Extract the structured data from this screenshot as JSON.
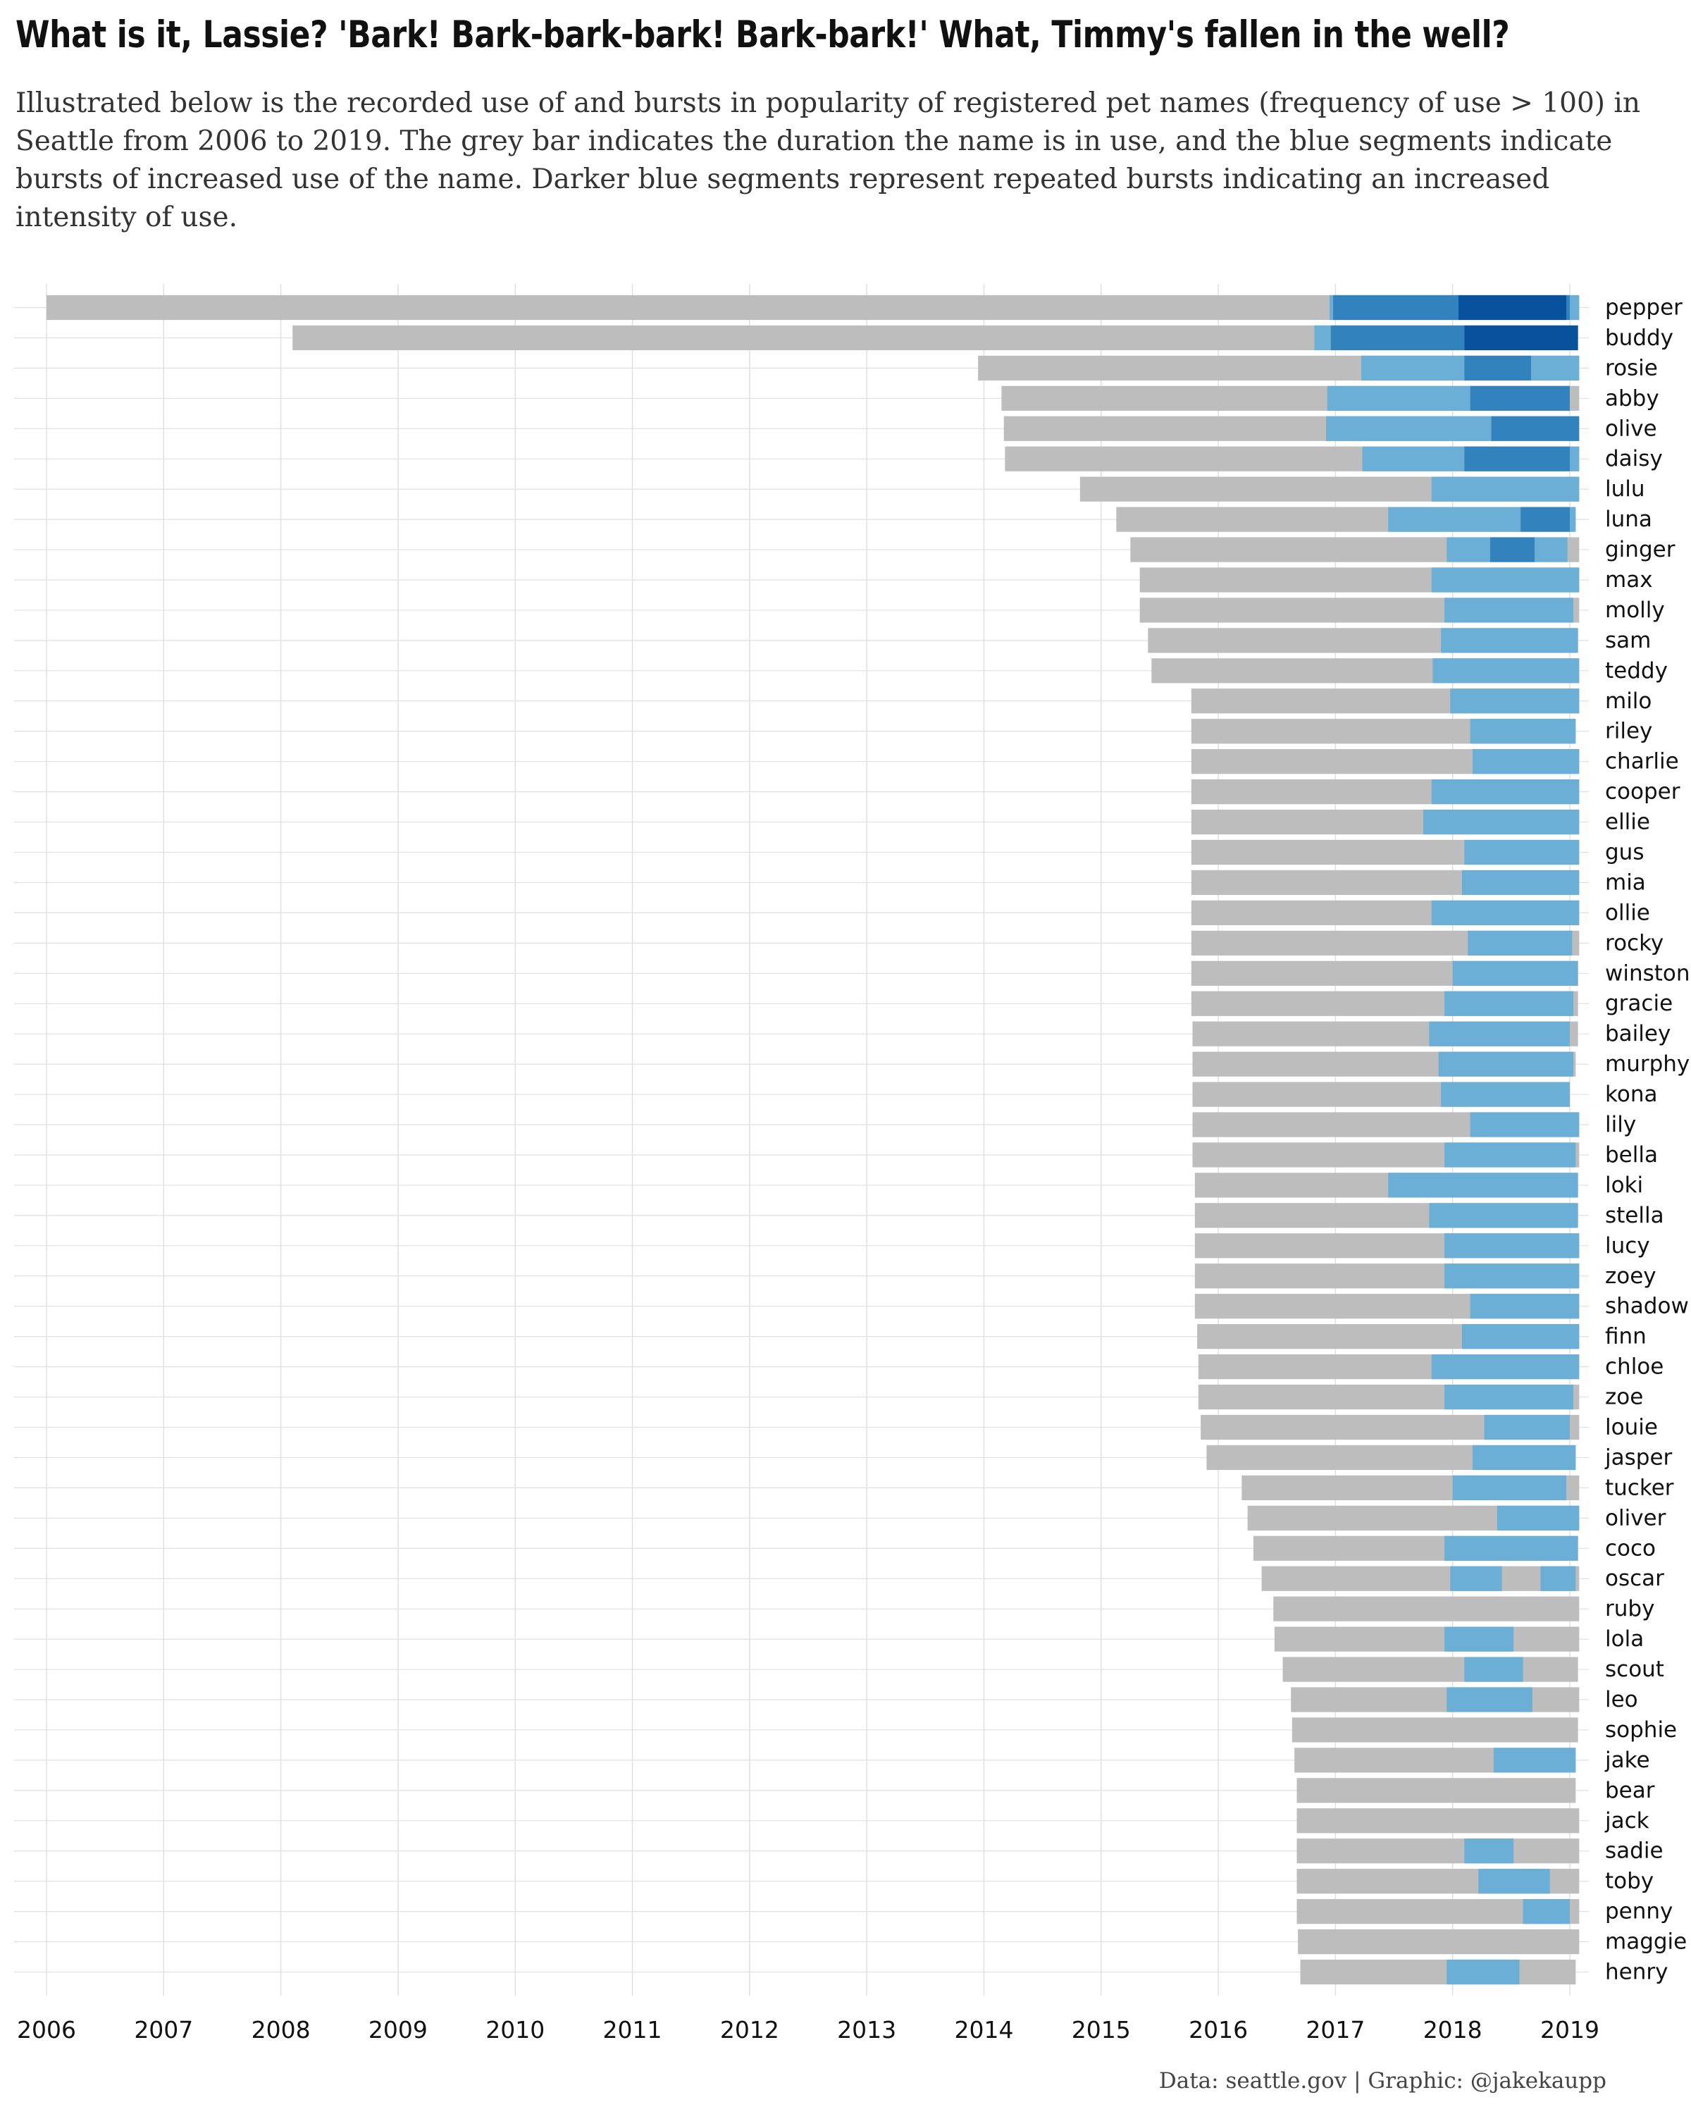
{
  "title": "What is it, Lassie? 'Bark! Bark-bark-bark! Bark-bark!' What, Timmy's fallen in the well?",
  "subtitle": "Illustrated below is the recorded use of and bursts in popularity of registered pet names (frequency of use > 100) in Seattle from 2006 to 2019. The grey bar indicates the duration the name is in use, and the blue segments indicate bursts of increased use of the name. Darker blue segments represent repeated bursts indicating an increased intensity of use.",
  "caption": "Data: seattle.gov | Graphic: @jakekaupp",
  "colors": {
    "usage": "#bdbdbd",
    "burst_level_1": "#6baed6",
    "burst_level_2": "#3182bd",
    "burst_level_3": "#08519c",
    "grid": "#e0e0e0"
  },
  "chart_data": {
    "type": "bar",
    "orientation": "horizontal-timeline",
    "x_axis": {
      "ticks": [
        "2006",
        "2007",
        "2008",
        "2009",
        "2010",
        "2011",
        "2012",
        "2013",
        "2014",
        "2015",
        "2016",
        "2017",
        "2018",
        "2019"
      ],
      "range": [
        2006,
        2019.1
      ]
    },
    "grid": true,
    "name_labels_position": "right",
    "rows": [
      {
        "name": "pepper",
        "start": 2006.0,
        "end": 2019.08,
        "bursts": [
          {
            "start": 2016.95,
            "end": 2016.98,
            "level": 1
          },
          {
            "start": 2016.98,
            "end": 2018.05,
            "level": 2
          },
          {
            "start": 2018.05,
            "end": 2018.97,
            "level": 3
          },
          {
            "start": 2018.97,
            "end": 2019.0,
            "level": 2
          },
          {
            "start": 2019.0,
            "end": 2019.08,
            "level": 1
          }
        ]
      },
      {
        "name": "buddy",
        "start": 2008.1,
        "end": 2019.07,
        "bursts": [
          {
            "start": 2016.82,
            "end": 2016.96,
            "level": 1
          },
          {
            "start": 2016.96,
            "end": 2018.1,
            "level": 2
          },
          {
            "start": 2018.1,
            "end": 2019.07,
            "level": 3
          }
        ]
      },
      {
        "name": "rosie",
        "start": 2013.95,
        "end": 2019.08,
        "bursts": [
          {
            "start": 2017.22,
            "end": 2018.1,
            "level": 1
          },
          {
            "start": 2018.1,
            "end": 2018.67,
            "level": 2
          },
          {
            "start": 2018.67,
            "end": 2019.08,
            "level": 1
          }
        ]
      },
      {
        "name": "abby",
        "start": 2014.15,
        "end": 2019.08,
        "bursts": [
          {
            "start": 2016.93,
            "end": 2018.15,
            "level": 1
          },
          {
            "start": 2018.15,
            "end": 2019.0,
            "level": 2
          }
        ]
      },
      {
        "name": "olive",
        "start": 2014.17,
        "end": 2019.08,
        "bursts": [
          {
            "start": 2016.92,
            "end": 2018.33,
            "level": 1
          },
          {
            "start": 2018.33,
            "end": 2019.08,
            "level": 2
          }
        ]
      },
      {
        "name": "daisy",
        "start": 2014.18,
        "end": 2019.08,
        "bursts": [
          {
            "start": 2017.23,
            "end": 2018.1,
            "level": 1
          },
          {
            "start": 2018.1,
            "end": 2019.0,
            "level": 2
          },
          {
            "start": 2019.0,
            "end": 2019.08,
            "level": 1
          }
        ]
      },
      {
        "name": "lulu",
        "start": 2014.82,
        "end": 2019.08,
        "bursts": [
          {
            "start": 2017.82,
            "end": 2019.08,
            "level": 1
          }
        ]
      },
      {
        "name": "luna",
        "start": 2015.13,
        "end": 2019.05,
        "bursts": [
          {
            "start": 2017.45,
            "end": 2018.58,
            "level": 1
          },
          {
            "start": 2018.58,
            "end": 2019.0,
            "level": 2
          },
          {
            "start": 2019.0,
            "end": 2019.05,
            "level": 1
          }
        ]
      },
      {
        "name": "ginger",
        "start": 2015.25,
        "end": 2019.08,
        "bursts": [
          {
            "start": 2017.95,
            "end": 2018.32,
            "level": 1
          },
          {
            "start": 2018.32,
            "end": 2018.7,
            "level": 2
          },
          {
            "start": 2018.7,
            "end": 2018.98,
            "level": 1
          }
        ]
      },
      {
        "name": "max",
        "start": 2015.33,
        "end": 2019.08,
        "bursts": [
          {
            "start": 2017.82,
            "end": 2019.08,
            "level": 1
          }
        ]
      },
      {
        "name": "molly",
        "start": 2015.33,
        "end": 2019.08,
        "bursts": [
          {
            "start": 2017.93,
            "end": 2019.03,
            "level": 1
          }
        ]
      },
      {
        "name": "sam",
        "start": 2015.4,
        "end": 2019.07,
        "bursts": [
          {
            "start": 2017.9,
            "end": 2019.07,
            "level": 1
          }
        ]
      },
      {
        "name": "teddy",
        "start": 2015.43,
        "end": 2019.08,
        "bursts": [
          {
            "start": 2017.83,
            "end": 2019.08,
            "level": 1
          }
        ]
      },
      {
        "name": "milo",
        "start": 2015.77,
        "end": 2019.08,
        "bursts": [
          {
            "start": 2017.98,
            "end": 2019.08,
            "level": 1
          }
        ]
      },
      {
        "name": "riley",
        "start": 2015.77,
        "end": 2019.05,
        "bursts": [
          {
            "start": 2018.15,
            "end": 2019.05,
            "level": 1
          }
        ]
      },
      {
        "name": "charlie",
        "start": 2015.77,
        "end": 2019.08,
        "bursts": [
          {
            "start": 2018.17,
            "end": 2019.08,
            "level": 1
          }
        ]
      },
      {
        "name": "cooper",
        "start": 2015.77,
        "end": 2019.08,
        "bursts": [
          {
            "start": 2017.82,
            "end": 2019.08,
            "level": 1
          }
        ]
      },
      {
        "name": "ellie",
        "start": 2015.77,
        "end": 2019.08,
        "bursts": [
          {
            "start": 2017.75,
            "end": 2019.08,
            "level": 1
          }
        ]
      },
      {
        "name": "gus",
        "start": 2015.77,
        "end": 2019.08,
        "bursts": [
          {
            "start": 2018.1,
            "end": 2019.08,
            "level": 1
          }
        ]
      },
      {
        "name": "mia",
        "start": 2015.77,
        "end": 2019.08,
        "bursts": [
          {
            "start": 2018.08,
            "end": 2019.08,
            "level": 1
          }
        ]
      },
      {
        "name": "ollie",
        "start": 2015.77,
        "end": 2019.08,
        "bursts": [
          {
            "start": 2017.82,
            "end": 2019.08,
            "level": 1
          }
        ]
      },
      {
        "name": "rocky",
        "start": 2015.77,
        "end": 2019.08,
        "bursts": [
          {
            "start": 2018.13,
            "end": 2019.02,
            "level": 1
          }
        ]
      },
      {
        "name": "winston",
        "start": 2015.77,
        "end": 2019.07,
        "bursts": [
          {
            "start": 2018.0,
            "end": 2019.07,
            "level": 1
          }
        ]
      },
      {
        "name": "gracie",
        "start": 2015.77,
        "end": 2019.07,
        "bursts": [
          {
            "start": 2017.93,
            "end": 2019.03,
            "level": 1
          }
        ]
      },
      {
        "name": "bailey",
        "start": 2015.78,
        "end": 2019.07,
        "bursts": [
          {
            "start": 2017.8,
            "end": 2019.0,
            "level": 1
          }
        ]
      },
      {
        "name": "murphy",
        "start": 2015.78,
        "end": 2019.05,
        "bursts": [
          {
            "start": 2017.88,
            "end": 2019.03,
            "level": 1
          }
        ]
      },
      {
        "name": "kona",
        "start": 2015.78,
        "end": 2019.0,
        "bursts": [
          {
            "start": 2017.9,
            "end": 2019.0,
            "level": 1
          }
        ]
      },
      {
        "name": "lily",
        "start": 2015.78,
        "end": 2019.08,
        "bursts": [
          {
            "start": 2018.15,
            "end": 2019.08,
            "level": 1
          }
        ]
      },
      {
        "name": "bella",
        "start": 2015.78,
        "end": 2019.08,
        "bursts": [
          {
            "start": 2017.93,
            "end": 2019.05,
            "level": 1
          }
        ]
      },
      {
        "name": "loki",
        "start": 2015.8,
        "end": 2019.07,
        "bursts": [
          {
            "start": 2017.45,
            "end": 2019.07,
            "level": 1
          }
        ]
      },
      {
        "name": "stella",
        "start": 2015.8,
        "end": 2019.07,
        "bursts": [
          {
            "start": 2017.8,
            "end": 2019.07,
            "level": 1
          }
        ]
      },
      {
        "name": "lucy",
        "start": 2015.8,
        "end": 2019.08,
        "bursts": [
          {
            "start": 2017.93,
            "end": 2019.08,
            "level": 1
          }
        ]
      },
      {
        "name": "zoey",
        "start": 2015.8,
        "end": 2019.08,
        "bursts": [
          {
            "start": 2017.93,
            "end": 2019.08,
            "level": 1
          }
        ]
      },
      {
        "name": "shadow",
        "start": 2015.8,
        "end": 2019.08,
        "bursts": [
          {
            "start": 2018.15,
            "end": 2019.08,
            "level": 1
          }
        ]
      },
      {
        "name": "finn",
        "start": 2015.82,
        "end": 2019.08,
        "bursts": [
          {
            "start": 2018.08,
            "end": 2019.08,
            "level": 1
          }
        ]
      },
      {
        "name": "chloe",
        "start": 2015.83,
        "end": 2019.08,
        "bursts": [
          {
            "start": 2017.82,
            "end": 2019.08,
            "level": 1
          }
        ]
      },
      {
        "name": "zoe",
        "start": 2015.83,
        "end": 2019.08,
        "bursts": [
          {
            "start": 2017.93,
            "end": 2019.03,
            "level": 1
          }
        ]
      },
      {
        "name": "louie",
        "start": 2015.85,
        "end": 2019.08,
        "bursts": [
          {
            "start": 2018.27,
            "end": 2019.0,
            "level": 1
          }
        ]
      },
      {
        "name": "jasper",
        "start": 2015.9,
        "end": 2019.05,
        "bursts": [
          {
            "start": 2018.17,
            "end": 2019.05,
            "level": 1
          }
        ]
      },
      {
        "name": "tucker",
        "start": 2016.2,
        "end": 2019.08,
        "bursts": [
          {
            "start": 2018.0,
            "end": 2018.97,
            "level": 1
          }
        ]
      },
      {
        "name": "oliver",
        "start": 2016.25,
        "end": 2019.08,
        "bursts": [
          {
            "start": 2018.38,
            "end": 2019.08,
            "level": 1
          }
        ]
      },
      {
        "name": "coco",
        "start": 2016.3,
        "end": 2019.07,
        "bursts": [
          {
            "start": 2017.93,
            "end": 2019.07,
            "level": 1
          }
        ]
      },
      {
        "name": "oscar",
        "start": 2016.37,
        "end": 2019.08,
        "bursts": [
          {
            "start": 2017.98,
            "end": 2018.42,
            "level": 1
          },
          {
            "start": 2018.75,
            "end": 2019.05,
            "level": 1
          }
        ]
      },
      {
        "name": "ruby",
        "start": 2016.47,
        "end": 2019.08,
        "bursts": []
      },
      {
        "name": "lola",
        "start": 2016.48,
        "end": 2019.08,
        "bursts": [
          {
            "start": 2017.93,
            "end": 2018.52,
            "level": 1
          }
        ]
      },
      {
        "name": "scout",
        "start": 2016.55,
        "end": 2019.07,
        "bursts": [
          {
            "start": 2018.1,
            "end": 2018.6,
            "level": 1
          }
        ]
      },
      {
        "name": "leo",
        "start": 2016.62,
        "end": 2019.08,
        "bursts": [
          {
            "start": 2017.95,
            "end": 2018.68,
            "level": 1
          }
        ]
      },
      {
        "name": "sophie",
        "start": 2016.63,
        "end": 2019.07,
        "bursts": []
      },
      {
        "name": "jake",
        "start": 2016.65,
        "end": 2019.05,
        "bursts": [
          {
            "start": 2018.35,
            "end": 2019.05,
            "level": 1
          }
        ]
      },
      {
        "name": "bear",
        "start": 2016.67,
        "end": 2019.05,
        "bursts": []
      },
      {
        "name": "jack",
        "start": 2016.67,
        "end": 2019.08,
        "bursts": []
      },
      {
        "name": "sadie",
        "start": 2016.67,
        "end": 2019.08,
        "bursts": [
          {
            "start": 2018.1,
            "end": 2018.52,
            "level": 1
          }
        ]
      },
      {
        "name": "toby",
        "start": 2016.67,
        "end": 2019.08,
        "bursts": [
          {
            "start": 2018.22,
            "end": 2018.83,
            "level": 1
          }
        ]
      },
      {
        "name": "penny",
        "start": 2016.67,
        "end": 2019.08,
        "bursts": [
          {
            "start": 2018.6,
            "end": 2019.0,
            "level": 1
          }
        ]
      },
      {
        "name": "maggie",
        "start": 2016.68,
        "end": 2019.08,
        "bursts": []
      },
      {
        "name": "henry",
        "start": 2016.7,
        "end": 2019.05,
        "bursts": [
          {
            "start": 2017.95,
            "end": 2018.57,
            "level": 1
          }
        ]
      }
    ]
  }
}
